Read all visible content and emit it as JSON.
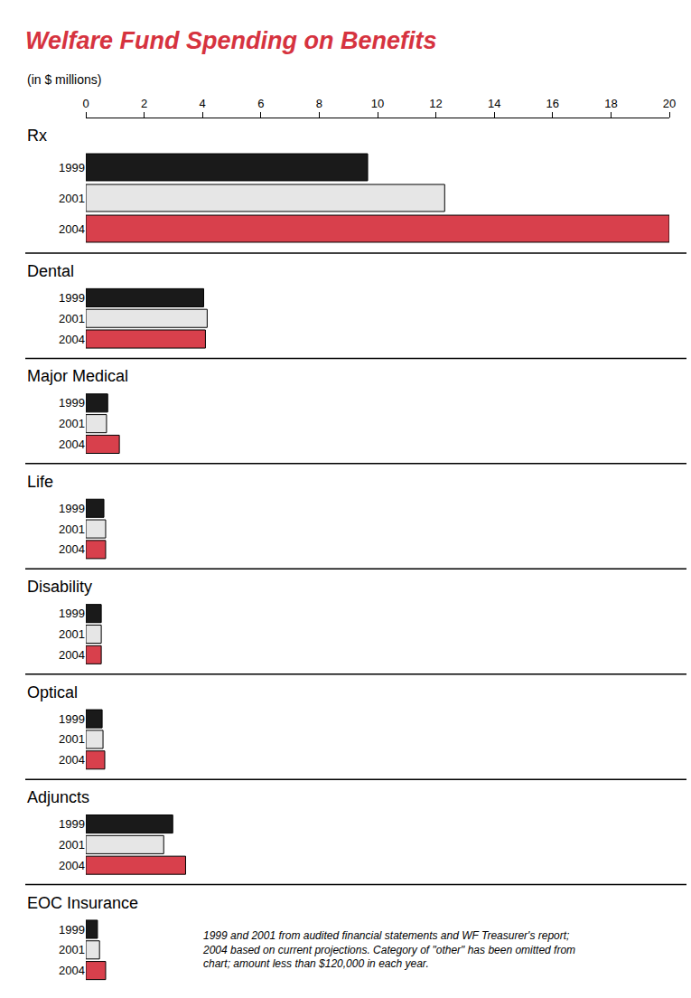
{
  "chart_data": {
    "type": "bar",
    "orientation": "horizontal",
    "title": "Welfare Fund Spending on Benefits",
    "xlabel": "(in $ millions)",
    "annotation": "1999 and 2001 from audited financial statements and WF Treasurer's report; 2004 based on current projections. Category of \"other\" has been omitted from chart; amount less than $120,000 in each year.",
    "categories": [
      "Rx",
      "Dental",
      "Major Medical",
      "Life",
      "Disability",
      "Optical",
      "Adjuncts",
      "EOC Insurance"
    ],
    "series": [
      {
        "name": "1999",
        "color": "#1a1a1a",
        "values": [
          9.66,
          4.04,
          0.75,
          0.62,
          0.53,
          0.56,
          2.98,
          0.4
        ]
      },
      {
        "name": "2001",
        "color": "#e6e6e6",
        "values": [
          12.3,
          4.16,
          0.71,
          0.68,
          0.53,
          0.59,
          2.67,
          0.47
        ]
      },
      {
        "name": "2004",
        "color": "#d8404c",
        "values": [
          20,
          4.1,
          1.15,
          0.68,
          0.53,
          0.65,
          3.42,
          0.68
        ]
      }
    ],
    "xlim": [
      0,
      20
    ],
    "xticks": [
      0,
      2,
      4,
      6,
      8,
      10,
      12,
      14,
      16,
      18,
      20
    ],
    "grid": false
  }
}
